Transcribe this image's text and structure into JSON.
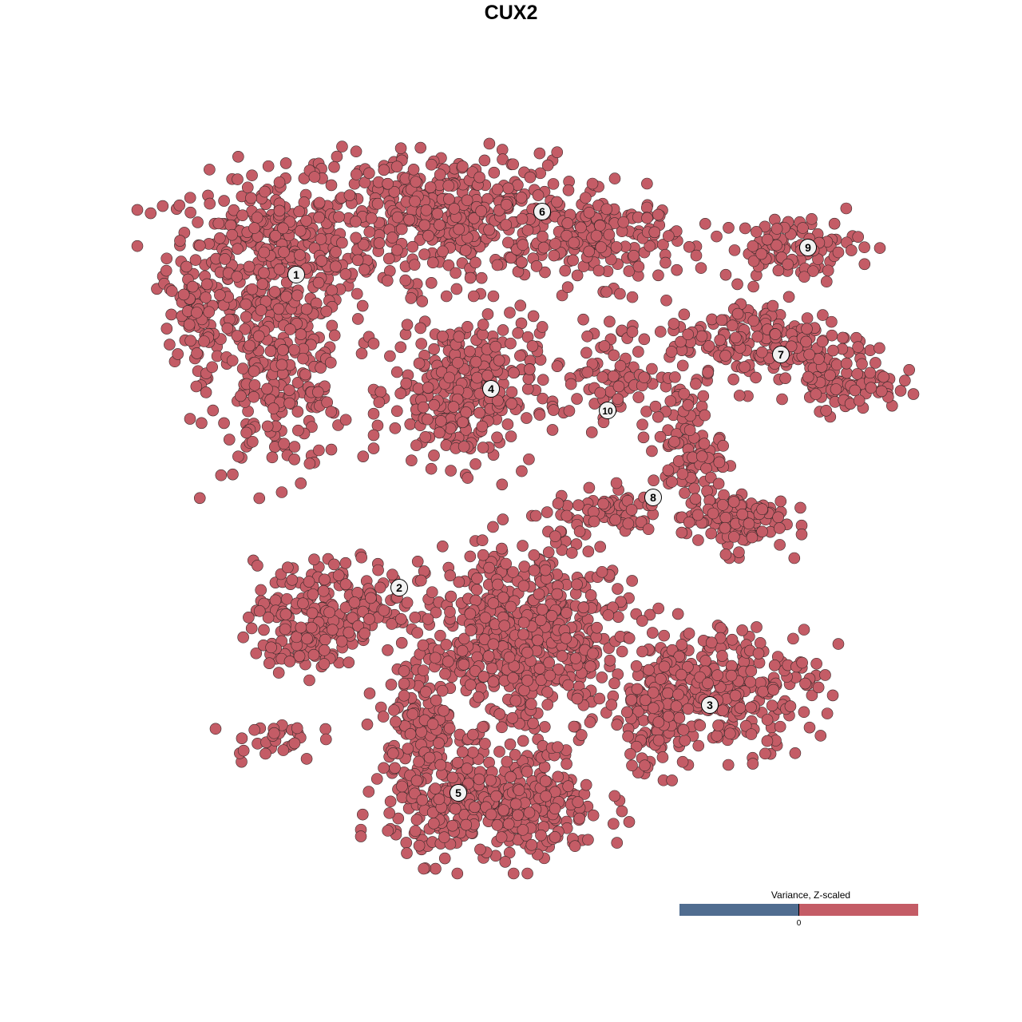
{
  "chart_data": {
    "type": "scatter",
    "title": "CUX2",
    "xlabel": "",
    "ylabel": "",
    "xlim": [
      -50,
      50
    ],
    "ylim": [
      -50,
      50
    ],
    "grid": false,
    "axes_visible": false,
    "point_color": "#c45c66",
    "point_outline": "#3a2a2a",
    "legend": {
      "title": "Variance, Z-scaled",
      "placement": "bottom-right",
      "low_color": "#506d90",
      "high_color": "#c45c66",
      "tick_label": "0"
    },
    "cluster_regions": [
      {
        "cluster": "1",
        "blobs": [
          [
            -32,
            32,
            12,
            9,
            350
          ],
          [
            -31,
            17,
            8,
            11,
            250
          ],
          [
            -41,
            24,
            4,
            6,
            60
          ]
        ]
      },
      {
        "cluster": "6",
        "blobs": [
          [
            -10,
            37,
            15,
            7,
            450
          ],
          [
            10,
            34,
            8,
            5,
            150
          ]
        ]
      },
      {
        "cluster": "4",
        "blobs": [
          [
            -8,
            15,
            8,
            8.5,
            300
          ]
        ]
      },
      {
        "cluster": "10",
        "blobs": [
          [
            10,
            17,
            6,
            6,
            80
          ]
        ]
      },
      {
        "cluster": "7",
        "blobs": [
          [
            30,
            21,
            12,
            5,
            200
          ],
          [
            40,
            16,
            6,
            3,
            80
          ]
        ]
      },
      {
        "cluster": "9",
        "blobs": [
          [
            33,
            33,
            8,
            3.5,
            100
          ]
        ]
      },
      {
        "cluster": "8",
        "blobs": [
          [
            20,
            8,
            4,
            7,
            100
          ],
          [
            26,
            -1,
            6,
            3.5,
            120
          ],
          [
            10,
            0,
            6,
            2.5,
            60
          ]
        ]
      },
      {
        "cluster": "2",
        "blobs": [
          [
            -24,
            -12,
            9,
            5,
            200
          ],
          [
            -29,
            -17,
            5,
            3,
            60
          ],
          [
            -32,
            -28.5,
            5,
            2.5,
            30
          ]
        ]
      },
      {
        "cluster": "5",
        "blobs": [
          [
            -4,
            -37,
            12,
            6,
            400
          ],
          [
            -13,
            -26,
            5,
            8,
            150
          ],
          [
            0,
            -16,
            11,
            11,
            600
          ]
        ]
      },
      {
        "cluster": "3",
        "blobs": [
          [
            24,
            -22,
            11,
            7,
            300
          ],
          [
            16,
            -26,
            5,
            6,
            100
          ]
        ]
      }
    ],
    "cluster_labels": [
      {
        "label": "1",
        "x": -28.9,
        "y": 29.6
      },
      {
        "label": "2",
        "x": -16.0,
        "y": -9.6
      },
      {
        "label": "3",
        "x": 22.9,
        "y": -24.3
      },
      {
        "label": "4",
        "x": -4.5,
        "y": 15.3
      },
      {
        "label": "5",
        "x": -8.6,
        "y": -35.3
      },
      {
        "label": "6",
        "x": 1.9,
        "y": 37.5
      },
      {
        "label": "7",
        "x": 31.8,
        "y": 19.6
      },
      {
        "label": "8",
        "x": 15.8,
        "y": 1.7
      },
      {
        "label": "9",
        "x": 35.2,
        "y": 33.0
      },
      {
        "label": "10",
        "x": 10.1,
        "y": 12.6
      }
    ]
  }
}
